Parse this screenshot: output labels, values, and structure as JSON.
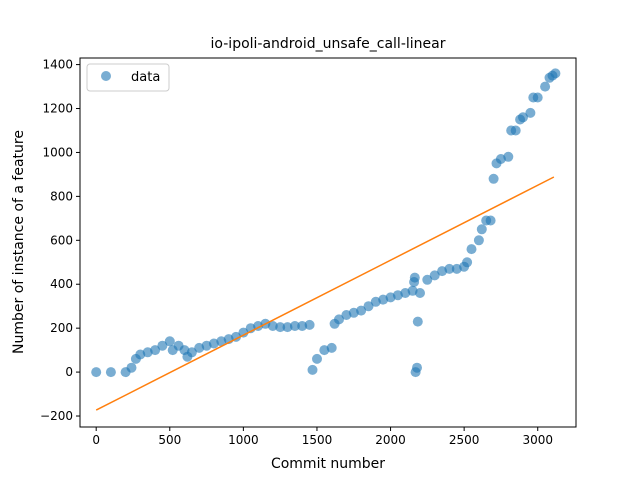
{
  "chart_data": {
    "type": "scatter",
    "title": "io-ipoli-android_unsafe_call-linear",
    "xlabel": "Commit number",
    "ylabel": "Number of instance of a feature",
    "xlim": [
      -110,
      3260
    ],
    "ylim": [
      -250,
      1430
    ],
    "xticks": [
      0,
      500,
      1000,
      1500,
      2000,
      2500,
      3000
    ],
    "yticks": [
      -200,
      0,
      200,
      400,
      600,
      800,
      1000,
      1200,
      1400
    ],
    "legend": {
      "label": "data",
      "placement": "top-left"
    },
    "grid": false,
    "colors": {
      "data": "#1f77b4",
      "fit": "#ff7f0e"
    },
    "series": [
      {
        "name": "data",
        "marker": "circle",
        "points": [
          [
            0,
            0
          ],
          [
            100,
            0
          ],
          [
            200,
            0
          ],
          [
            240,
            20
          ],
          [
            270,
            60
          ],
          [
            300,
            80
          ],
          [
            350,
            90
          ],
          [
            400,
            100
          ],
          [
            450,
            120
          ],
          [
            500,
            140
          ],
          [
            520,
            100
          ],
          [
            560,
            120
          ],
          [
            600,
            100
          ],
          [
            620,
            70
          ],
          [
            650,
            90
          ],
          [
            700,
            110
          ],
          [
            750,
            120
          ],
          [
            800,
            130
          ],
          [
            850,
            140
          ],
          [
            900,
            150
          ],
          [
            950,
            160
          ],
          [
            1000,
            180
          ],
          [
            1050,
            200
          ],
          [
            1100,
            210
          ],
          [
            1150,
            220
          ],
          [
            1200,
            210
          ],
          [
            1250,
            205
          ],
          [
            1300,
            205
          ],
          [
            1350,
            210
          ],
          [
            1400,
            210
          ],
          [
            1450,
            215
          ],
          [
            1470,
            10
          ],
          [
            1500,
            60
          ],
          [
            1550,
            100
          ],
          [
            1600,
            110
          ],
          [
            1620,
            220
          ],
          [
            1650,
            240
          ],
          [
            1700,
            260
          ],
          [
            1750,
            270
          ],
          [
            1800,
            280
          ],
          [
            1850,
            300
          ],
          [
            1900,
            320
          ],
          [
            1950,
            330
          ],
          [
            2000,
            340
          ],
          [
            2050,
            350
          ],
          [
            2100,
            360
          ],
          [
            2150,
            370
          ],
          [
            2160,
            410
          ],
          [
            2165,
            430
          ],
          [
            2170,
            0
          ],
          [
            2180,
            20
          ],
          [
            2185,
            230
          ],
          [
            2200,
            360
          ],
          [
            2250,
            420
          ],
          [
            2300,
            440
          ],
          [
            2350,
            460
          ],
          [
            2400,
            470
          ],
          [
            2450,
            470
          ],
          [
            2500,
            480
          ],
          [
            2520,
            500
          ],
          [
            2550,
            560
          ],
          [
            2600,
            600
          ],
          [
            2620,
            650
          ],
          [
            2650,
            690
          ],
          [
            2680,
            690
          ],
          [
            2700,
            880
          ],
          [
            2720,
            950
          ],
          [
            2750,
            970
          ],
          [
            2800,
            980
          ],
          [
            2820,
            1100
          ],
          [
            2850,
            1100
          ],
          [
            2880,
            1150
          ],
          [
            2900,
            1160
          ],
          [
            2950,
            1180
          ],
          [
            2970,
            1250
          ],
          [
            3000,
            1250
          ],
          [
            3050,
            1300
          ],
          [
            3080,
            1340
          ],
          [
            3100,
            1350
          ],
          [
            3120,
            1360
          ]
        ]
      },
      {
        "name": "",
        "style": "line",
        "points": [
          [
            0,
            -173
          ],
          [
            3110,
            888
          ]
        ]
      }
    ]
  }
}
